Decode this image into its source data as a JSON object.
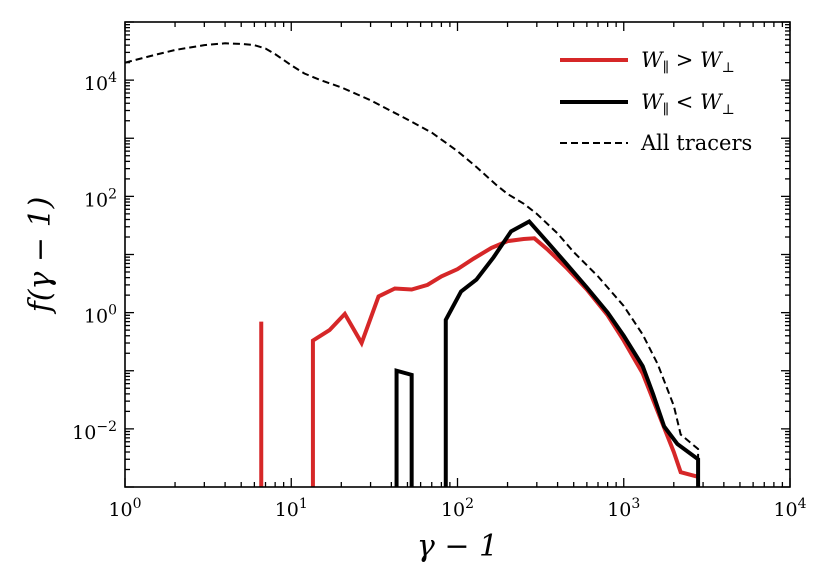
{
  "chart_data": {
    "type": "line",
    "xscale": "log",
    "yscale": "log",
    "xlim": [
      1,
      10000
    ],
    "ylim": [
      0.001,
      100000
    ],
    "xlabel": "γ − 1",
    "ylabel": "f(γ − 1)",
    "legend_position": "top-right",
    "x_ticks": [
      {
        "value": 1,
        "base": "10",
        "exp": "0"
      },
      {
        "value": 10,
        "base": "10",
        "exp": "1"
      },
      {
        "value": 100,
        "base": "10",
        "exp": "2"
      },
      {
        "value": 1000,
        "base": "10",
        "exp": "3"
      },
      {
        "value": 10000,
        "base": "10",
        "exp": "4"
      }
    ],
    "y_ticks": [
      {
        "value": 0.01,
        "base": "10",
        "exp": "−2"
      },
      {
        "value": 1,
        "base": "10",
        "exp": "0"
      },
      {
        "value": 100,
        "base": "10",
        "exp": "2"
      },
      {
        "value": 10000,
        "base": "10",
        "exp": "4"
      }
    ],
    "series": [
      {
        "name": "W∥ > W⊥",
        "legend": {
          "base1": "W",
          "sub1": "∥",
          "op": " > ",
          "base2": "W",
          "sub2": "⊥"
        },
        "color": "#d62728",
        "style": "solid",
        "segments": [
          [
            [
              6.6,
              0.001
            ],
            [
              6.6,
              0.7
            ]
          ],
          [
            [
              13.5,
              0.001
            ],
            [
              13.5,
              0.33
            ],
            [
              17,
              0.5
            ],
            [
              21,
              0.95
            ],
            [
              26.5,
              0.3
            ],
            [
              33.5,
              1.9
            ],
            [
              42,
              2.6
            ],
            [
              53,
              2.5
            ],
            [
              66,
              3.0
            ],
            [
              80,
              4.2
            ],
            [
              100,
              5.6
            ],
            [
              125,
              8.5
            ],
            [
              160,
              13
            ],
            [
              200,
              17
            ],
            [
              250,
              18.5
            ],
            [
              290,
              19
            ],
            [
              350,
              12
            ],
            [
              450,
              6
            ],
            [
              600,
              2.5
            ],
            [
              800,
              0.9
            ],
            [
              1000,
              0.33
            ],
            [
              1300,
              0.09
            ],
            [
              1600,
              0.02
            ],
            [
              2000,
              0.004
            ],
            [
              2200,
              0.0018
            ],
            [
              2800,
              0.0015
            ]
          ]
        ]
      },
      {
        "name": "W∥ < W⊥",
        "legend": {
          "base1": "W",
          "sub1": "∥",
          "op": " < ",
          "base2": "W",
          "sub2": "⊥"
        },
        "color": "#000000",
        "style": "solid",
        "segments": [
          [
            [
              43,
              0.001
            ],
            [
              43,
              0.1
            ],
            [
              53,
              0.085
            ],
            [
              53,
              0.001
            ]
          ],
          [
            [
              85,
              0.001
            ],
            [
              85,
              0.75
            ],
            [
              105,
              2.3
            ],
            [
              130,
              3.7
            ],
            [
              165,
              9
            ],
            [
              210,
              25
            ],
            [
              270,
              37
            ],
            [
              350,
              16
            ],
            [
              450,
              7
            ],
            [
              600,
              2.7
            ],
            [
              800,
              1.0
            ],
            [
              1000,
              0.4
            ],
            [
              1300,
              0.12
            ],
            [
              1500,
              0.04
            ],
            [
              1750,
              0.011
            ],
            [
              2100,
              0.0055
            ],
            [
              2800,
              0.003
            ],
            [
              2800,
              0.001
            ]
          ]
        ]
      },
      {
        "name": "All tracers",
        "legend": {
          "text": "All tracers"
        },
        "color": "#000000",
        "style": "dashed",
        "segments": [
          [
            [
              1,
              20000
            ],
            [
              1.5,
              27000
            ],
            [
              2,
              33000
            ],
            [
              3,
              40000
            ],
            [
              4,
              43000
            ],
            [
              5,
              42000
            ],
            [
              6,
              40000
            ],
            [
              7,
              35000
            ],
            [
              8,
              28000
            ],
            [
              10,
              18000
            ],
            [
              12,
              13000
            ],
            [
              15,
              10000
            ],
            [
              20,
              7500
            ],
            [
              30,
              4500
            ],
            [
              50,
              2100
            ],
            [
              70,
              1250
            ],
            [
              100,
              600
            ],
            [
              130,
              320
            ],
            [
              170,
              160
            ],
            [
              200,
              110
            ],
            [
              250,
              75
            ],
            [
              300,
              50
            ],
            [
              400,
              23
            ],
            [
              500,
              11
            ],
            [
              700,
              4.2
            ],
            [
              1000,
              1.3
            ],
            [
              1300,
              0.42
            ],
            [
              1600,
              0.13
            ],
            [
              2000,
              0.025
            ],
            [
              2200,
              0.008
            ],
            [
              2800,
              0.0045
            ],
            [
              2800,
              0.001
            ]
          ]
        ]
      }
    ]
  }
}
